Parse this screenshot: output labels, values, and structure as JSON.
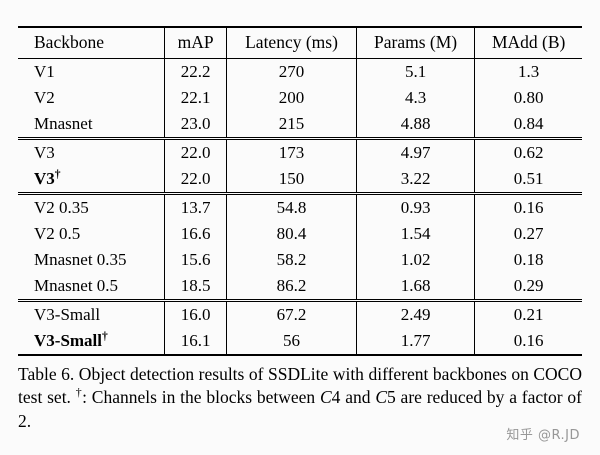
{
  "table": {
    "headers": [
      "Backbone",
      "mAP",
      "Latency (ms)",
      "Params (M)",
      "MAdd (B)"
    ],
    "groups": [
      {
        "rows": [
          {
            "backbone": "V1",
            "dagger": "",
            "map": "22.2",
            "latency": "270",
            "params": "5.1",
            "madd": "1.3"
          },
          {
            "backbone": "V2",
            "dagger": "",
            "map": "22.1",
            "latency": "200",
            "params": "4.3",
            "madd": "0.80"
          },
          {
            "backbone": "Mnasnet",
            "dagger": "",
            "map": "23.0",
            "latency": "215",
            "params": "4.88",
            "madd": "0.84"
          }
        ]
      },
      {
        "rows": [
          {
            "backbone": "V3",
            "dagger": "",
            "map": "22.0",
            "latency": "173",
            "params": "4.97",
            "madd": "0.62"
          },
          {
            "backbone": "V3",
            "dagger": "†",
            "map": "22.0",
            "latency": "150",
            "params": "3.22",
            "madd": "0.51"
          }
        ]
      },
      {
        "rows": [
          {
            "backbone": "V2 0.35",
            "dagger": "",
            "map": "13.7",
            "latency": "54.8",
            "params": "0.93",
            "madd": "0.16"
          },
          {
            "backbone": "V2 0.5",
            "dagger": "",
            "map": "16.6",
            "latency": "80.4",
            "params": "1.54",
            "madd": "0.27"
          },
          {
            "backbone": "Mnasnet 0.35",
            "dagger": "",
            "map": "15.6",
            "latency": "58.2",
            "params": "1.02",
            "madd": "0.18"
          },
          {
            "backbone": "Mnasnet 0.5",
            "dagger": "",
            "map": "18.5",
            "latency": "86.2",
            "params": "1.68",
            "madd": "0.29"
          }
        ]
      },
      {
        "rows": [
          {
            "backbone": "V3-Small",
            "dagger": "",
            "map": "16.0",
            "latency": "67.2",
            "params": "2.49",
            "madd": "0.21"
          },
          {
            "backbone": "V3-Small",
            "dagger": "†",
            "map": "16.1",
            "latency": "56",
            "params": "1.77",
            "madd": "0.16"
          }
        ]
      }
    ]
  },
  "caption": {
    "p1": "Table 6. Object detection results of SSDLite with different backbones on COCO test set. ",
    "dagger": "†",
    "p2": ": Channels in the blocks between ",
    "c4_letter": "C",
    "c4_num": "4",
    "p3": " and ",
    "c5_letter": "C",
    "c5_num": "5",
    "p4": " are reduced by a factor of 2."
  },
  "watermark": "知乎 @R.JD"
}
